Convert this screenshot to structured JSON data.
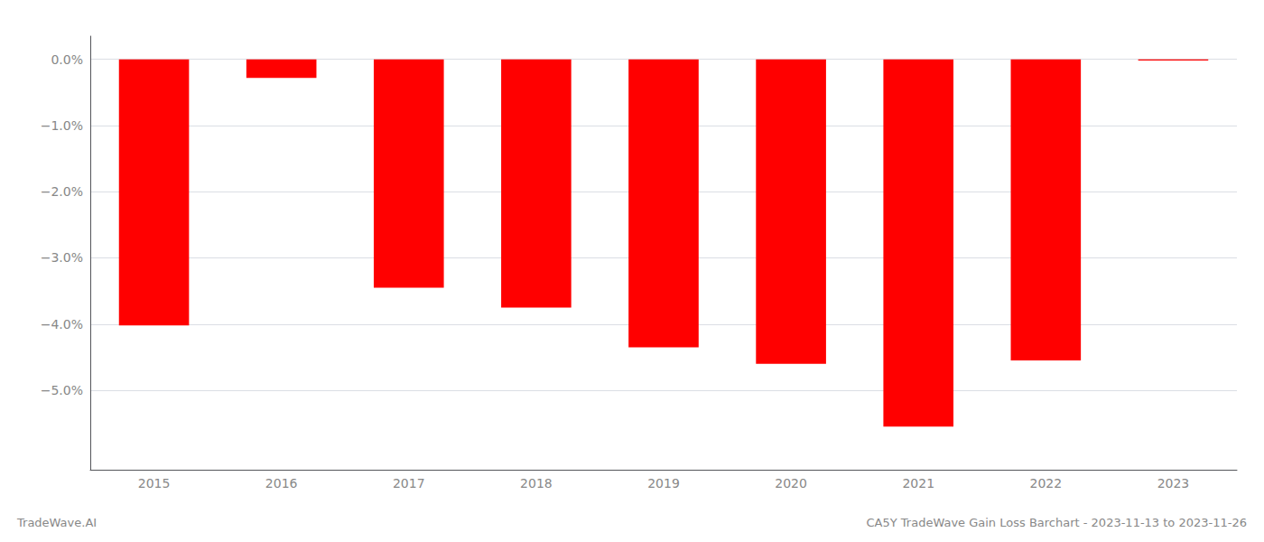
{
  "chart_data": {
    "type": "bar",
    "title": "CA5Y TradeWave Gain Loss Barchart - 2023-11-13 to 2023-11-26",
    "annotations": [
      "TradeWave.AI"
    ],
    "categories": [
      "2015",
      "2016",
      "2017",
      "2018",
      "2019",
      "2020",
      "2021",
      "2022",
      "2023"
    ],
    "values": [
      -4.02,
      -0.28,
      -3.45,
      -3.75,
      -4.35,
      -4.6,
      -5.55,
      -4.55,
      -0.02
    ],
    "color": "#ff0000",
    "ylim": [
      -6.2,
      0.35
    ],
    "yticks": [
      {
        "value": 0.0,
        "label": "0.0%"
      },
      {
        "value": -1.0,
        "label": "−1.0%"
      },
      {
        "value": -2.0,
        "label": "−2.0%"
      },
      {
        "value": -3.0,
        "label": "−3.0%"
      },
      {
        "value": -4.0,
        "label": "−4.0%"
      },
      {
        "value": -5.0,
        "label": "−5.0%"
      }
    ],
    "grid": true
  }
}
